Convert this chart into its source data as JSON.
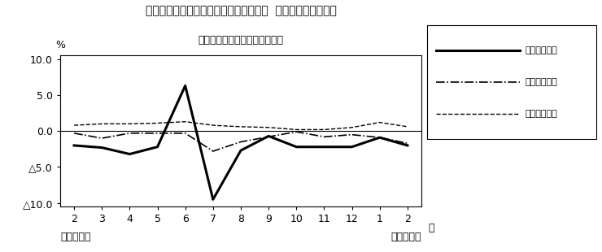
{
  "title_line1": "第４図　賃金、労働時間、常用雇用指数  対前年同月比の推移",
  "title_line2": "（規模５人以上　調査産業計）",
  "xlabel_bottom_left": "平成２４年",
  "xlabel_bottom_right": "平成２５年",
  "ylabel": "%",
  "month_label": "月",
  "xtick_labels": [
    "2",
    "3",
    "4",
    "5",
    "6",
    "7",
    "8",
    "9",
    "10",
    "11",
    "12",
    "1",
    "2"
  ],
  "ylim": [
    -10.5,
    10.5
  ],
  "yticks": [
    -10.0,
    -5.0,
    0.0,
    5.0,
    10.0
  ],
  "legend_labels": [
    "現金給与総額",
    "総実労働時間",
    "常用雇用指数"
  ],
  "series_genkin": [
    -2.0,
    -2.3,
    -3.2,
    -2.2,
    6.3,
    -9.5,
    -2.7,
    -0.7,
    -2.2,
    -2.2,
    -2.2,
    -0.9,
    -2.0
  ],
  "series_sojitsu": [
    -0.3,
    -1.0,
    -0.3,
    -0.3,
    -0.3,
    -2.8,
    -1.5,
    -0.8,
    -0.1,
    -0.8,
    -0.5,
    -0.9,
    -1.7
  ],
  "series_joyokoyo": [
    0.8,
    1.0,
    1.0,
    1.1,
    1.3,
    0.8,
    0.6,
    0.5,
    0.2,
    0.2,
    0.5,
    1.2,
    0.6
  ],
  "background_color": "#ffffff",
  "line_color": "#000000"
}
